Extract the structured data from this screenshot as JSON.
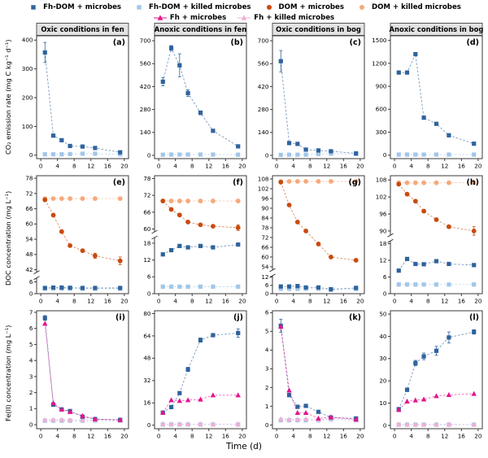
{
  "xlabel": "Time (d)",
  "x_ticks": [
    0,
    4,
    8,
    12,
    16,
    20
  ],
  "x_range": [
    -1,
    21
  ],
  "time_days": [
    1,
    3,
    5,
    7,
    10,
    13,
    19
  ],
  "column_headers": [
    "Oxic conditions in fen",
    "Anoxic conditions in fen",
    "Oxic conditions in bog",
    "Anoxic conditions in bog"
  ],
  "rows": [
    {
      "ylabel": "CO₂ emission rate (mg C kg⁻¹ d⁻¹)"
    },
    {
      "ylabel": "DOC concentration (mg L⁻¹)"
    },
    {
      "ylabel": "Fe(II) concentration (mg L⁻¹)"
    }
  ],
  "styles": {
    "fhdom_m": {
      "color": "#2f639c",
      "marker": "square"
    },
    "fhdom_k": {
      "color": "#a3c6e8",
      "marker": "square"
    },
    "dom_m": {
      "color": "#c84b0e",
      "marker": "circle"
    },
    "dom_k": {
      "color": "#f6a97c",
      "marker": "circle"
    },
    "fh_m": {
      "color": "#e5138c",
      "marker": "triangle"
    },
    "fh_k": {
      "color": "#f2afd4",
      "marker": "triangle"
    }
  },
  "legend": {
    "row1": [
      {
        "key": "fhdom_m",
        "label": "Fh-DOM + microbes",
        "line": false
      },
      {
        "key": "fhdom_k",
        "label": "Fh-DOM + killed microbes",
        "line": false
      },
      {
        "key": "dom_m",
        "label": "DOM + microbes",
        "line": false
      },
      {
        "key": "dom_k",
        "label": "DOM + killed microbes",
        "line": false
      }
    ],
    "row2": [
      {
        "key": "fh_m",
        "label": "Fh + microbes",
        "line": true
      },
      {
        "key": "fh_k",
        "label": "Fh + killed microbes",
        "line": true
      }
    ]
  },
  "chart_data": [
    {
      "type": "line",
      "id": "a",
      "letter": "(a)",
      "header": "Oxic conditions in fen",
      "row": 1,
      "col": 1,
      "axis": {
        "segments": [
          {
            "range": [
              -12,
              415
            ],
            "ticks": [
              0,
              100,
              200,
              300,
              400
            ],
            "frac": 1
          }
        ]
      },
      "series": [
        {
          "key": "fhdom_k",
          "name": "Fh-DOM + killed microbes",
          "values": [
            3,
            3,
            3,
            4,
            5,
            5,
            3
          ]
        },
        {
          "key": "fhdom_m",
          "name": "Fh-DOM + microbes",
          "values": [
            357,
            68,
            52,
            32,
            30,
            25,
            10
          ],
          "err": [
            35,
            5,
            4,
            3,
            3,
            3,
            4
          ]
        }
      ]
    },
    {
      "type": "line",
      "id": "b",
      "letter": "(b)",
      "header": "Anoxic conditions in fen",
      "row": 1,
      "col": 2,
      "axis": {
        "segments": [
          {
            "range": [
              -20,
              730
            ],
            "ticks": [
              0,
              140,
              280,
              420,
              560,
              700
            ],
            "frac": 1
          }
        ]
      },
      "series": [
        {
          "key": "fhdom_k",
          "name": "Fh-DOM + killed microbes",
          "values": [
            4,
            5,
            5,
            5,
            5,
            5,
            4
          ]
        },
        {
          "key": "fhdom_m",
          "name": "Fh-DOM + microbes",
          "values": [
            450,
            655,
            550,
            380,
            260,
            150,
            55
          ],
          "err": [
            25,
            15,
            70,
            20,
            12,
            8,
            6
          ]
        }
      ]
    },
    {
      "type": "line",
      "id": "c",
      "letter": "(c)",
      "header": "Oxic conditions in bog",
      "row": 1,
      "col": 3,
      "axis": {
        "segments": [
          {
            "range": [
              -20,
              730
            ],
            "ticks": [
              0,
              140,
              280,
              420,
              560,
              700
            ],
            "frac": 1
          }
        ]
      },
      "series": [
        {
          "key": "fhdom_k",
          "name": "Fh-DOM + killed microbes",
          "values": [
            3,
            4,
            4,
            4,
            8,
            10,
            8
          ]
        },
        {
          "key": "fhdom_m",
          "name": "Fh-DOM + microbes",
          "values": [
            575,
            75,
            70,
            35,
            30,
            25,
            12
          ],
          "err": [
            65,
            6,
            5,
            4,
            4,
            4,
            8
          ]
        }
      ]
    },
    {
      "type": "line",
      "id": "d",
      "letter": "(d)",
      "header": "Anoxic conditions in bog",
      "row": 1,
      "col": 4,
      "axis": {
        "segments": [
          {
            "range": [
              -45,
              1560
            ],
            "ticks": [
              0,
              300,
              600,
              900,
              1200,
              1500
            ],
            "frac": 1
          }
        ]
      },
      "series": [
        {
          "key": "fhdom_k",
          "name": "Fh-DOM + killed microbes",
          "values": [
            8,
            8,
            8,
            8,
            8,
            8,
            8
          ]
        },
        {
          "key": "fhdom_m",
          "name": "Fh-DOM + microbes",
          "values": [
            1080,
            1080,
            1320,
            490,
            410,
            260,
            150
          ]
        }
      ]
    },
    {
      "type": "line",
      "id": "e",
      "letter": "(e)",
      "row": 2,
      "col": 1,
      "axis": {
        "segments": [
          {
            "range": [
              0,
              8
            ],
            "ticks": [
              0,
              6
            ],
            "frac": 0.14
          },
          {
            "range": [
              41,
              79
            ],
            "ticks": [
              42,
              48,
              54,
              60,
              66,
              72,
              78
            ],
            "frac": 0.86
          }
        ]
      },
      "series": [
        {
          "key": "fhdom_k",
          "name": "Fh-DOM + killed microbes",
          "values": [
            2.6,
            2.6,
            2.6,
            2.6,
            2.5,
            2.5,
            2.5
          ]
        },
        {
          "key": "fhdom_m",
          "name": "Fh-DOM + microbes",
          "values": [
            2.9,
            3.1,
            3.1,
            3.0,
            2.9,
            2.9,
            2.9
          ]
        },
        {
          "key": "dom_k",
          "name": "DOM + killed microbes",
          "values": [
            70,
            70,
            70,
            70,
            70,
            70,
            70
          ]
        },
        {
          "key": "dom_m",
          "name": "DOM + microbes",
          "values": [
            69.5,
            63.5,
            57,
            51.5,
            49.5,
            47.5,
            45.5
          ],
          "err": [
            0.5,
            0.5,
            0.5,
            0.5,
            0.5,
            1,
            1.5
          ]
        }
      ]
    },
    {
      "type": "line",
      "id": "f",
      "letter": "(f)",
      "row": 2,
      "col": 2,
      "axis": {
        "segments": [
          {
            "range": [
              0,
              20
            ],
            "ticks": [
              0,
              6,
              12,
              18
            ],
            "frac": 0.5
          },
          {
            "range": [
              59,
              79
            ],
            "ticks": [
              60,
              66,
              72,
              78
            ],
            "frac": 0.5
          }
        ]
      },
      "series": [
        {
          "key": "fhdom_k",
          "name": "Fh-DOM + killed microbes",
          "values": [
            2.5,
            2.5,
            2.5,
            2.5,
            2.5,
            2.5,
            2.5
          ]
        },
        {
          "key": "fhdom_m",
          "name": "Fh-DOM + microbes",
          "values": [
            14,
            15.5,
            17,
            16.5,
            17,
            16.5,
            17.5
          ]
        },
        {
          "key": "dom_k",
          "name": "DOM + killed microbes",
          "values": [
            70,
            70,
            70,
            70,
            70,
            70,
            70
          ]
        },
        {
          "key": "dom_m",
          "name": "DOM + microbes",
          "values": [
            70,
            67,
            65,
            62.5,
            61.5,
            61,
            60.5
          ],
          "err": [
            0.5,
            0.5,
            0.5,
            0.5,
            0.5,
            0.5,
            1
          ]
        }
      ]
    },
    {
      "type": "line",
      "id": "g",
      "letter": "(g)",
      "row": 2,
      "col": 3,
      "axis": {
        "segments": [
          {
            "range": [
              0,
              13
            ],
            "ticks": [
              0,
              6,
              12
            ],
            "frac": 0.16
          },
          {
            "range": [
              52,
              110
            ],
            "ticks": [
              54,
              60,
              66,
              72,
              78,
              84,
              90,
              96,
              102,
              108
            ],
            "frac": 0.84
          }
        ]
      },
      "series": [
        {
          "key": "fhdom_k",
          "name": "Fh-DOM + killed microbes",
          "values": [
            3.5,
            3.5,
            3.5,
            3.5,
            3.5,
            2.8,
            3.3
          ]
        },
        {
          "key": "fhdom_m",
          "name": "Fh-DOM + microbes",
          "values": [
            5.2,
            5.2,
            5.5,
            4.5,
            4.5,
            3.2,
            4.2
          ]
        },
        {
          "key": "dom_k",
          "name": "DOM + killed microbes",
          "values": [
            106.5,
            106.5,
            106.5,
            106.5,
            106.5,
            106.5,
            106.5
          ]
        },
        {
          "key": "dom_m",
          "name": "DOM + microbes",
          "values": [
            106,
            92,
            81.5,
            76,
            68,
            60,
            58
          ]
        }
      ]
    },
    {
      "type": "line",
      "id": "h",
      "letter": "(h)",
      "row": 2,
      "col": 4,
      "axis": {
        "segments": [
          {
            "range": [
              0,
              19
            ],
            "ticks": [
              0,
              6,
              12,
              18
            ],
            "frac": 0.47
          },
          {
            "range": [
              88.5,
              109.5
            ],
            "ticks": [
              90,
              96,
              102,
              108
            ],
            "frac": 0.53
          }
        ]
      },
      "series": [
        {
          "key": "fhdom_k",
          "name": "Fh-DOM + killed microbes",
          "values": [
            3.3,
            3.3,
            3.3,
            3.3,
            3.3,
            3.3,
            3.3
          ]
        },
        {
          "key": "fhdom_m",
          "name": "Fh-DOM + microbes",
          "values": [
            8.3,
            12.5,
            10.7,
            10.6,
            11.7,
            10.7,
            10.3
          ]
        },
        {
          "key": "dom_k",
          "name": "DOM + killed microbes",
          "values": [
            107,
            107,
            107,
            107,
            107,
            107,
            107
          ]
        },
        {
          "key": "dom_m",
          "name": "DOM + microbes",
          "values": [
            106.5,
            103,
            100.5,
            97,
            94,
            91.5,
            90
          ],
          "err": [
            0.5,
            0.5,
            0.5,
            0.5,
            0.5,
            0.5,
            1.5
          ]
        }
      ]
    },
    {
      "type": "line",
      "id": "i",
      "letter": "(i)",
      "row": 3,
      "col": 1,
      "axis": {
        "segments": [
          {
            "range": [
              -0.25,
              7.1
            ],
            "ticks": [
              0,
              1,
              2,
              3,
              4,
              5,
              6,
              7
            ],
            "frac": 1
          }
        ]
      },
      "series": [
        {
          "key": "fhdom_k",
          "name": "Fh-DOM + killed microbes",
          "values": [
            0.25,
            0.25,
            0.25,
            0.25,
            0.25,
            0.25,
            0.25
          ]
        },
        {
          "key": "fh_k",
          "name": "Fh + killed microbes",
          "values": [
            0.3,
            0.3,
            0.32,
            0.3,
            0.3,
            0.3,
            0.3
          ]
        },
        {
          "key": "fhdom_m",
          "name": "Fh-DOM + microbes",
          "values": [
            6.65,
            1.25,
            0.95,
            0.85,
            0.5,
            0.35,
            0.3
          ],
          "err": [
            0.15,
            0.08,
            0.05,
            0.05,
            0.04,
            0.03,
            0.03
          ]
        },
        {
          "key": "fh_m",
          "name": "Fh + microbes",
          "values": [
            6.3,
            1.35,
            0.95,
            0.8,
            0.55,
            0.35,
            0.3
          ]
        }
      ]
    },
    {
      "type": "line",
      "id": "j",
      "letter": "(j)",
      "row": 3,
      "col": 2,
      "axis": {
        "segments": [
          {
            "range": [
              -2.5,
              82
            ],
            "ticks": [
              0,
              16,
              32,
              48,
              64,
              80
            ],
            "frac": 1
          }
        ]
      },
      "series": [
        {
          "key": "fhdom_k",
          "name": "Fh-DOM + killed microbes",
          "values": [
            0.5,
            0.5,
            0.5,
            0.5,
            0.5,
            0.5,
            0.5
          ]
        },
        {
          "key": "fh_k",
          "name": "Fh + killed microbes",
          "values": [
            0.8,
            0.8,
            0.8,
            0.8,
            0.8,
            0.8,
            0.8
          ]
        },
        {
          "key": "fhdom_m",
          "name": "Fh-DOM + microbes",
          "values": [
            9,
            13,
            23,
            40,
            61,
            64.5,
            66
          ],
          "err": [
            0.5,
            0.5,
            1,
            1.5,
            1.5,
            1,
            3
          ]
        },
        {
          "key": "fh_m",
          "name": "Fh + microbes",
          "values": [
            9,
            18,
            17.5,
            18,
            18.5,
            21.5,
            21.5
          ]
        }
      ]
    },
    {
      "type": "line",
      "id": "k",
      "letter": "(k)",
      "row": 3,
      "col": 3,
      "axis": {
        "segments": [
          {
            "range": [
              -0.2,
              6.1
            ],
            "ticks": [
              0,
              1,
              2,
              3,
              4,
              5,
              6
            ],
            "frac": 1
          }
        ]
      },
      "series": [
        {
          "key": "fhdom_k",
          "name": "Fh-DOM + killed microbes",
          "values": [
            0.25,
            0.25,
            0.25,
            0.25,
            0.25,
            0.3,
            0.25
          ]
        },
        {
          "key": "fh_k",
          "name": "Fh + killed microbes",
          "values": [
            0.32,
            0.3,
            0.3,
            0.32,
            0.3,
            0.35,
            0.3
          ]
        },
        {
          "key": "fhdom_m",
          "name": "Fh-DOM + microbes",
          "values": [
            5.3,
            1.6,
            0.97,
            1.02,
            0.7,
            0.4,
            0.35
          ],
          "err": [
            0.35,
            0.1,
            0.08,
            0.06,
            0.05,
            0.05,
            0.05
          ]
        },
        {
          "key": "fh_m",
          "name": "Fh + microbes",
          "values": [
            5.25,
            1.85,
            0.65,
            0.65,
            0.35,
            0.42,
            0.3
          ]
        }
      ]
    },
    {
      "type": "line",
      "id": "l",
      "letter": "(l)",
      "row": 3,
      "col": 4,
      "axis": {
        "segments": [
          {
            "range": [
              -1.5,
              51.5
            ],
            "ticks": [
              0,
              10,
              20,
              30,
              40,
              50
            ],
            "frac": 1
          }
        ]
      },
      "series": [
        {
          "key": "fhdom_k",
          "name": "Fh-DOM + killed microbes",
          "values": [
            0.3,
            0.3,
            0.3,
            0.3,
            0.3,
            0.3,
            0.3
          ]
        },
        {
          "key": "fh_k",
          "name": "Fh + killed microbes",
          "values": [
            0.4,
            0.4,
            0.4,
            0.4,
            0.5,
            0.5,
            0.4
          ]
        },
        {
          "key": "fhdom_m",
          "name": "Fh-DOM + microbes",
          "values": [
            7.3,
            16,
            28,
            31,
            33.5,
            39.5,
            42
          ],
          "err": [
            0.5,
            0.8,
            1.2,
            1.5,
            2,
            2.5,
            1
          ]
        },
        {
          "key": "fh_m",
          "name": "Fh + microbes",
          "values": [
            7,
            10.8,
            11.3,
            11.7,
            13.2,
            13.7,
            14.2
          ]
        }
      ]
    }
  ],
  "panel_style": {
    "header_fill": "#e2e2e2",
    "header_border": "#555555",
    "box_color": "#3a3a3a"
  }
}
